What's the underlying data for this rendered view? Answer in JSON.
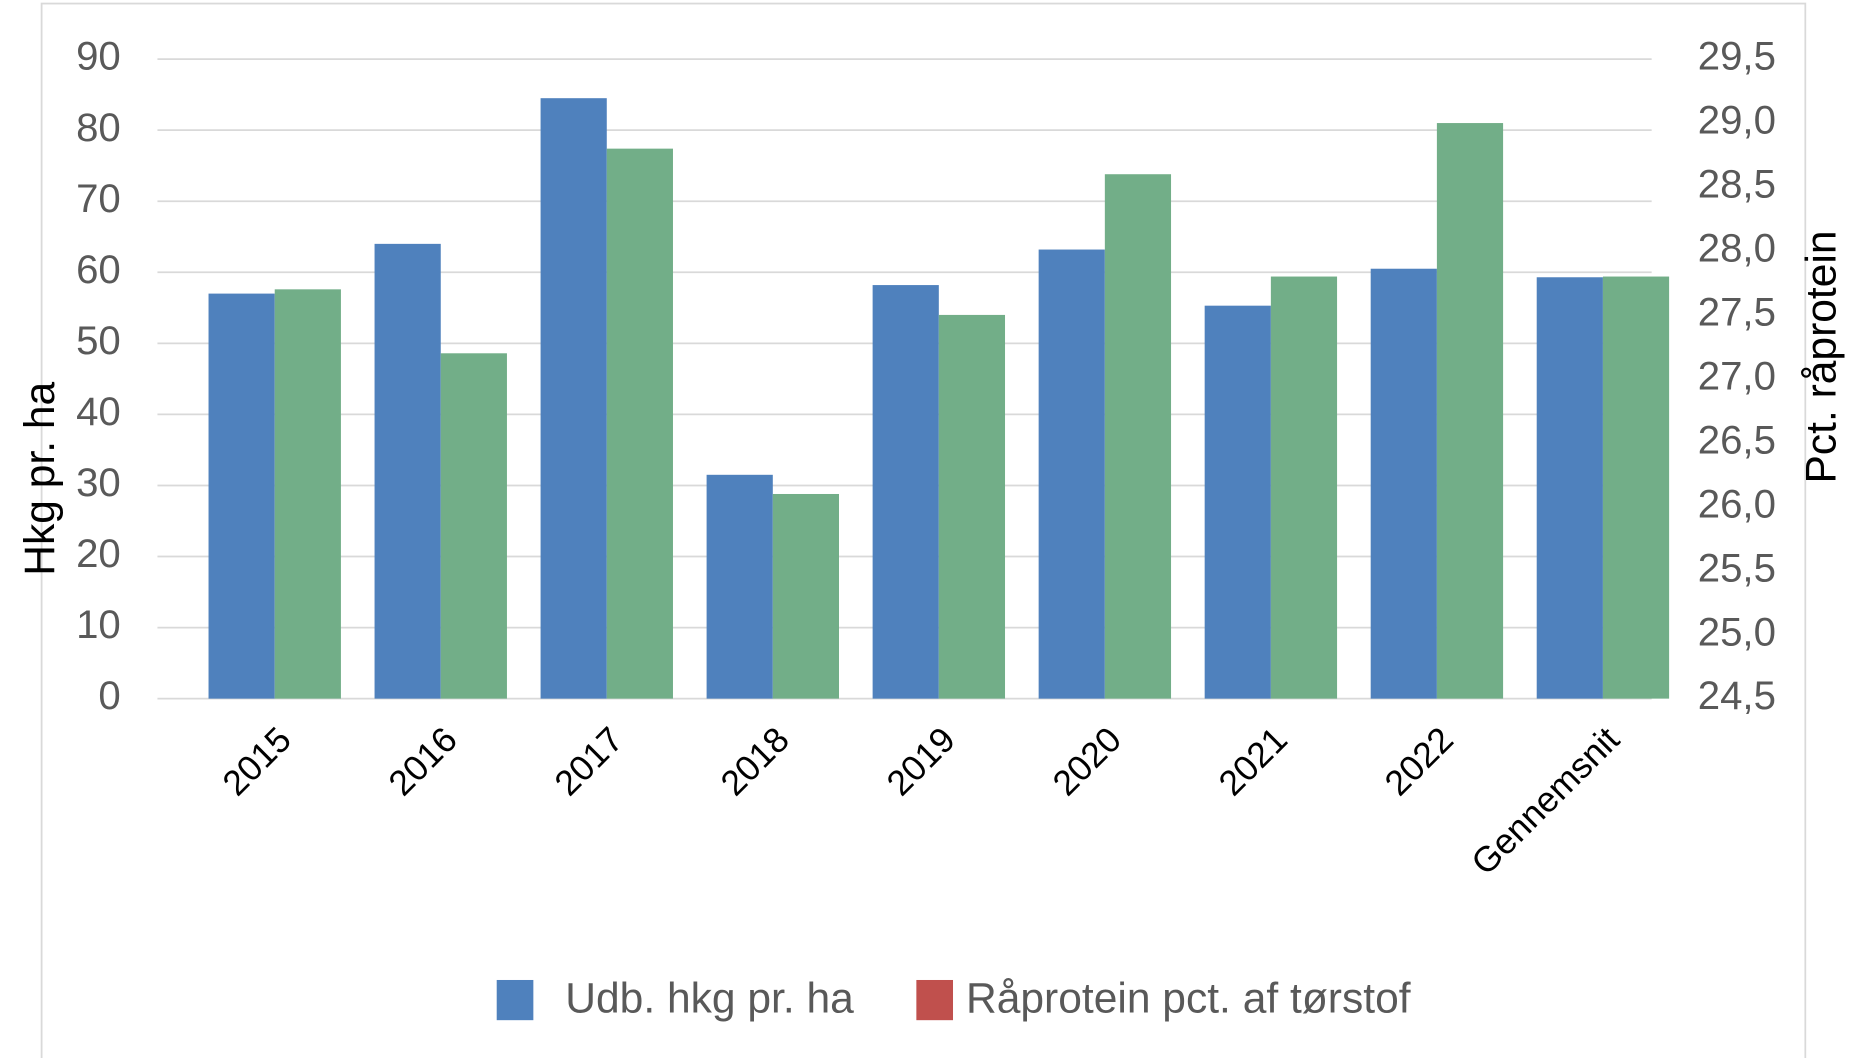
{
  "chart_data": {
    "type": "bar",
    "categories": [
      "2015",
      "2016",
      "2017",
      "2018",
      "2019",
      "2020",
      "2021",
      "2022",
      "Gennemsnit"
    ],
    "series": [
      {
        "name": "Udb. hkg pr. ha",
        "color": "#4f81bd",
        "values": [
          57,
          64,
          84.5,
          31.5,
          58.2,
          63.2,
          55.3,
          60.5,
          59.3
        ]
      },
      {
        "name": "Råprotein pct. af tørstof",
        "color": "#72ae88",
        "legend_color": "#c0504d",
        "axis": "y2",
        "values": [
          27.7,
          27.2,
          28.8,
          26.1,
          27.5,
          28.6,
          27.8,
          29.0,
          27.8
        ]
      }
    ],
    "ylabel": "Hkg pr. ha",
    "y2label": "Pct. råprotein",
    "ylim": [
      0,
      90
    ],
    "yticks": [
      0,
      10,
      20,
      30,
      40,
      50,
      60,
      70,
      80,
      90
    ],
    "y2lim": [
      24.5,
      29.5
    ],
    "y2ticks": [
      {
        "value": 24.5,
        "label": "24,5"
      },
      {
        "value": 25,
        "label": "25,0"
      },
      {
        "value": 25.5,
        "label": "25,5"
      },
      {
        "value": 26,
        "label": "26,0"
      },
      {
        "value": 26.5,
        "label": "26,5"
      },
      {
        "value": 27,
        "label": "27,0"
      },
      {
        "value": 27.5,
        "label": "27,5"
      },
      {
        "value": 28,
        "label": "28,0"
      },
      {
        "value": 28.5,
        "label": "28,5"
      },
      {
        "value": 29,
        "label": "29,0"
      },
      {
        "value": 29.5,
        "label": "29,5"
      }
    ],
    "grid": true
  }
}
